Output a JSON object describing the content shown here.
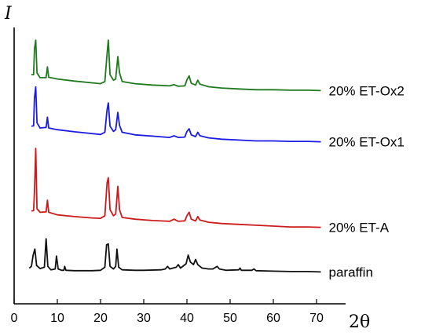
{
  "chart_data": {
    "type": "line",
    "title": "",
    "xlabel": "2θ",
    "ylabel": "I",
    "xlim": [
      0,
      72
    ],
    "xticks": [
      0,
      10,
      20,
      30,
      40,
      50,
      60,
      70
    ],
    "y_axis_ticks": false,
    "grid": false,
    "legend": "labels at the right end of each curve",
    "series": [
      {
        "name": "20% ET-Ox2",
        "color": "#1f7a1f",
        "points": [
          [
            4,
            178
          ],
          [
            4.5,
            178
          ],
          [
            4.7,
            238
          ],
          [
            5,
            258
          ],
          [
            5.3,
            182
          ],
          [
            6,
            171
          ],
          [
            7.4,
            171
          ],
          [
            7.7,
            196
          ],
          [
            8,
            172
          ],
          [
            10,
            168
          ],
          [
            14,
            163
          ],
          [
            18,
            159
          ],
          [
            20,
            157
          ],
          [
            21,
            162
          ],
          [
            21.5,
            226
          ],
          [
            21.8,
            258
          ],
          [
            22.2,
            178
          ],
          [
            23,
            165
          ],
          [
            23.5,
            168
          ],
          [
            24,
            220
          ],
          [
            24.4,
            182
          ],
          [
            25,
            162
          ],
          [
            28,
            157
          ],
          [
            32,
            154
          ],
          [
            36,
            152
          ],
          [
            37,
            155
          ],
          [
            38,
            151
          ],
          [
            39.5,
            152
          ],
          [
            40,
            166
          ],
          [
            40.5,
            175
          ],
          [
            41,
            158
          ],
          [
            42,
            154
          ],
          [
            42.5,
            165
          ],
          [
            43,
            156
          ],
          [
            45,
            150
          ],
          [
            48,
            147
          ],
          [
            52,
            145
          ],
          [
            56,
            143
          ],
          [
            60,
            143
          ],
          [
            64,
            142
          ],
          [
            68,
            142
          ],
          [
            71,
            141
          ]
        ]
      },
      {
        "name": "20% ET-Ox1",
        "color": "#1a1ae6",
        "points": [
          [
            4,
            144
          ],
          [
            4.5,
            145
          ],
          [
            4.7,
            210
          ],
          [
            5,
            235
          ],
          [
            5.3,
            152
          ],
          [
            6,
            140
          ],
          [
            7.4,
            141
          ],
          [
            7.7,
            165
          ],
          [
            8,
            140
          ],
          [
            10,
            136
          ],
          [
            14,
            131
          ],
          [
            18,
            127
          ],
          [
            20,
            125
          ],
          [
            21,
            130
          ],
          [
            21.5,
            182
          ],
          [
            21.8,
            198
          ],
          [
            22.2,
            144
          ],
          [
            23,
            132
          ],
          [
            23.5,
            136
          ],
          [
            24,
            176
          ],
          [
            24.4,
            146
          ],
          [
            25,
            130
          ],
          [
            28,
            124
          ],
          [
            32,
            121
          ],
          [
            36,
            118
          ],
          [
            37,
            122
          ],
          [
            38,
            118
          ],
          [
            39.5,
            119
          ],
          [
            40,
            132
          ],
          [
            40.5,
            138
          ],
          [
            41,
            124
          ],
          [
            42,
            120
          ],
          [
            42.5,
            130
          ],
          [
            43,
            122
          ],
          [
            45,
            117
          ],
          [
            48,
            114
          ],
          [
            52,
            112
          ],
          [
            56,
            110
          ],
          [
            60,
            110
          ],
          [
            64,
            109
          ],
          [
            68,
            109
          ],
          [
            71,
            108
          ]
        ]
      },
      {
        "name": "20% ET-A",
        "color": "#cc1a1a",
        "points": [
          [
            4,
            75
          ],
          [
            4.5,
            76
          ],
          [
            4.7,
            120
          ],
          [
            5,
            220
          ],
          [
            5.3,
            80
          ],
          [
            6,
            72
          ],
          [
            7.4,
            73
          ],
          [
            7.7,
            100
          ],
          [
            8,
            72
          ],
          [
            10,
            66
          ],
          [
            14,
            62
          ],
          [
            18,
            59
          ],
          [
            20,
            58
          ],
          [
            21,
            64
          ],
          [
            21.5,
            140
          ],
          [
            21.8,
            152
          ],
          [
            22.2,
            78
          ],
          [
            23,
            64
          ],
          [
            23.5,
            68
          ],
          [
            24,
            132
          ],
          [
            24.4,
            78
          ],
          [
            25,
            60
          ],
          [
            28,
            56
          ],
          [
            32,
            53
          ],
          [
            36,
            51
          ],
          [
            37,
            56
          ],
          [
            38,
            51
          ],
          [
            39.5,
            52
          ],
          [
            40,
            64
          ],
          [
            40.5,
            72
          ],
          [
            41,
            56
          ],
          [
            42,
            52
          ],
          [
            42.5,
            62
          ],
          [
            43,
            54
          ],
          [
            45,
            49
          ],
          [
            48,
            46
          ],
          [
            52,
            44
          ],
          [
            56,
            42
          ],
          [
            60,
            40
          ],
          [
            64,
            38
          ],
          [
            68,
            38
          ],
          [
            71,
            37
          ]
        ]
      },
      {
        "name": "paraffin",
        "color": "#111111",
        "points": [
          [
            3.5,
            10
          ],
          [
            4,
            14
          ],
          [
            4.4,
            40
          ],
          [
            4.8,
            54
          ],
          [
            5.2,
            16
          ],
          [
            6,
            9
          ],
          [
            7,
            12
          ],
          [
            7.4,
            78
          ],
          [
            7.8,
            14
          ],
          [
            8.5,
            6
          ],
          [
            9.5,
            8
          ],
          [
            9.8,
            38
          ],
          [
            10.2,
            8
          ],
          [
            11,
            5
          ],
          [
            11.5,
            5
          ],
          [
            11.7,
            14
          ],
          [
            12,
            5
          ],
          [
            14,
            4
          ],
          [
            18,
            4
          ],
          [
            20,
            5
          ],
          [
            21,
            12
          ],
          [
            21.4,
            64
          ],
          [
            21.8,
            66
          ],
          [
            22.2,
            14
          ],
          [
            23,
            8
          ],
          [
            23.5,
            14
          ],
          [
            23.8,
            54
          ],
          [
            24.2,
            12
          ],
          [
            25,
            6
          ],
          [
            28,
            5
          ],
          [
            30,
            5
          ],
          [
            34,
            6
          ],
          [
            35,
            8
          ],
          [
            35.5,
            14
          ],
          [
            36,
            8
          ],
          [
            37.5,
            12
          ],
          [
            38,
            18
          ],
          [
            38.5,
            10
          ],
          [
            39.8,
            20
          ],
          [
            40.3,
            40
          ],
          [
            40.8,
            24
          ],
          [
            41.5,
            18
          ],
          [
            42,
            30
          ],
          [
            42.5,
            18
          ],
          [
            43.5,
            10
          ],
          [
            45,
            8
          ],
          [
            46,
            8
          ],
          [
            47,
            14
          ],
          [
            47.5,
            8
          ],
          [
            49,
            5
          ],
          [
            52,
            6
          ],
          [
            52.3,
            10
          ],
          [
            52.6,
            5
          ],
          [
            55,
            5
          ],
          [
            55.5,
            8
          ],
          [
            56,
            4
          ],
          [
            60,
            3
          ],
          [
            64,
            2
          ],
          [
            68,
            2
          ],
          [
            71,
            1
          ]
        ]
      }
    ]
  }
}
